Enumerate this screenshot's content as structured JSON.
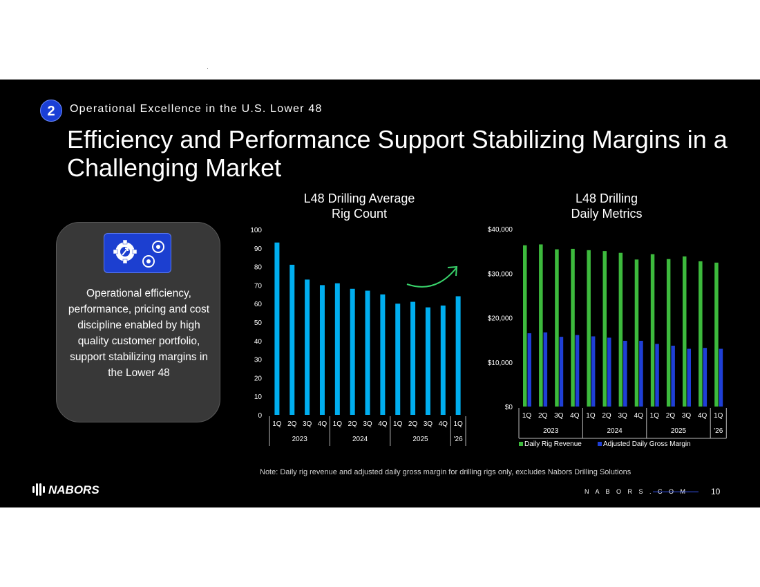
{
  "header": {
    "section_number": "2",
    "section_label": "Operational Excellence in the U.S. Lower 48",
    "title": "Efficiency and Performance Support Stabilizing Margins in a Challenging Market"
  },
  "card": {
    "icon": "gears-icon",
    "text": "Operational efficiency, performance, pricing and cost discipline enabled by high quality customer portfolio, support stabilizing margins in the Lower 48"
  },
  "footer": {
    "note": "Note: Daily rig revenue and adjusted daily gross margin for drilling rigs only, excludes Nabors Drilling Solutions",
    "brand": "NABORS",
    "url": "N A B O R S . C O M",
    "page": "10"
  },
  "colors": {
    "rig_bar": "#00aeef",
    "revenue": "#3dba3d",
    "margin": "#1f3fd6",
    "arrow": "#39d36b"
  },
  "chart_data": [
    {
      "type": "bar",
      "title_lines": [
        "L48 Drilling Average",
        "Rig Count"
      ],
      "categories": [
        "1Q",
        "2Q",
        "3Q",
        "4Q",
        "1Q",
        "2Q",
        "3Q",
        "4Q",
        "1Q",
        "2Q",
        "3Q",
        "4Q",
        "1Q"
      ],
      "groups": [
        {
          "label": "2023",
          "count": 4
        },
        {
          "label": "2024",
          "count": 4
        },
        {
          "label": "2025",
          "count": 4
        },
        {
          "label": "'26",
          "count": 1
        }
      ],
      "values": [
        93,
        81,
        73,
        70,
        71,
        68,
        67,
        65,
        60,
        61,
        58,
        59,
        64
      ],
      "ylim": [
        0,
        100
      ],
      "yticks": [
        "0",
        "10",
        "20",
        "30",
        "40",
        "50",
        "60",
        "70",
        "80",
        "90",
        "100"
      ],
      "grid": false,
      "annotation": "upward-trend-arrow"
    },
    {
      "type": "bar",
      "title_lines": [
        "L48 Drilling",
        "Daily Metrics"
      ],
      "categories": [
        "1Q",
        "2Q",
        "3Q",
        "4Q",
        "1Q",
        "2Q",
        "3Q",
        "4Q",
        "1Q",
        "2Q",
        "3Q",
        "4Q",
        "1Q"
      ],
      "groups": [
        {
          "label": "2023",
          "count": 4
        },
        {
          "label": "2024",
          "count": 4
        },
        {
          "label": "2025",
          "count": 4
        },
        {
          "label": "'26",
          "count": 1
        }
      ],
      "series": [
        {
          "name": "Daily Rig Revenue",
          "values": [
            36300,
            36500,
            35400,
            35500,
            35200,
            35000,
            34600,
            33100,
            34300,
            33200,
            33800,
            32700,
            32400
          ]
        },
        {
          "name": "Adjusted Daily Gross Margin",
          "values": [
            16500,
            16700,
            15700,
            16100,
            15800,
            15500,
            14800,
            14800,
            14100,
            13700,
            13000,
            13200,
            13000
          ]
        }
      ],
      "ylim": [
        0,
        40000
      ],
      "yticks": [
        "$0",
        "$10,000",
        "$20,000",
        "$30,000",
        "$40,000"
      ],
      "grid": false,
      "legend": "bottom"
    }
  ]
}
